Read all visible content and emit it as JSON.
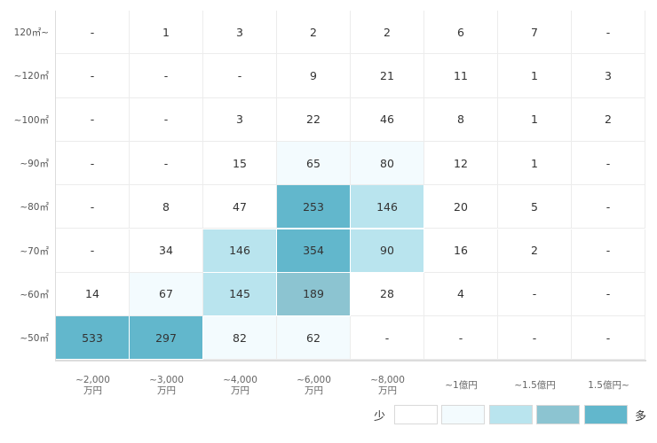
{
  "chart_data": {
    "type": "heatmap",
    "rows": [
      "120㎡~",
      "~120㎡",
      "~100㎡",
      "~90㎡",
      "~80㎡",
      "~70㎡",
      "~60㎡",
      "~50㎡"
    ],
    "columns": [
      [
        "~2,000",
        "万円"
      ],
      [
        "~3,000",
        "万円"
      ],
      [
        "~4,000",
        "万円"
      ],
      [
        "~6,000",
        "万円"
      ],
      [
        "~8,000",
        "万円"
      ],
      [
        "~1億円"
      ],
      [
        "~1.5億円"
      ],
      [
        "1.5億円~"
      ]
    ],
    "values": [
      [
        "-",
        "1",
        "3",
        "2",
        "2",
        "6",
        "7",
        "-"
      ],
      [
        "-",
        "-",
        "-",
        "9",
        "21",
        "11",
        "1",
        "3"
      ],
      [
        "-",
        "-",
        "3",
        "22",
        "46",
        "8",
        "1",
        "2"
      ],
      [
        "-",
        "-",
        "15",
        "65",
        "80",
        "12",
        "1",
        "-"
      ],
      [
        "-",
        "8",
        "47",
        "253",
        "146",
        "20",
        "5",
        "-"
      ],
      [
        "-",
        "34",
        "146",
        "354",
        "90",
        "16",
        "2",
        "-"
      ],
      [
        "14",
        "67",
        "145",
        "189",
        "28",
        "4",
        "-",
        "-"
      ],
      [
        "533",
        "297",
        "82",
        "62",
        "-",
        "-",
        "-",
        "-"
      ]
    ],
    "legend": {
      "low_label": "少",
      "high_label": "多",
      "colors": [
        "#ffffff",
        "#f3fbfe",
        "#b9e4ee",
        "#8cc4d1",
        "#62b7cc"
      ]
    }
  }
}
